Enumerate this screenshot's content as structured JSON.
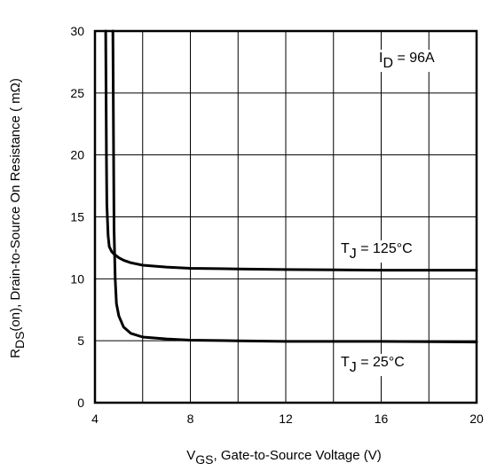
{
  "chart_data": {
    "type": "line",
    "title": "",
    "xlabel": {
      "main": "V",
      "sub": "GS",
      "rest": ", Gate-to-Source Voltage (V)"
    },
    "ylabel": {
      "main": "R",
      "sub": "DS",
      "rest": "(on),  Drain-to-Source On Resistance ( mΩ)"
    },
    "xlim": [
      4,
      20
    ],
    "ylim": [
      0,
      30
    ],
    "xticks": [
      4,
      8,
      12,
      16,
      20
    ],
    "yticks": [
      0,
      5,
      10,
      15,
      20,
      25,
      30
    ],
    "grid": true,
    "legend": "none",
    "colors": {
      "line": "#000000",
      "grid": "#000000",
      "background": "#ffffff"
    },
    "series": [
      {
        "label": {
          "main": "T",
          "sub": "J",
          "rest": " = 125°C"
        },
        "x": [
          4.45,
          4.48,
          4.5,
          4.55,
          4.6,
          4.7,
          4.8,
          5.0,
          5.2,
          5.5,
          6,
          7,
          8,
          10,
          12,
          16,
          20
        ],
        "y": [
          30,
          20,
          16,
          13.5,
          12.6,
          12.2,
          12.0,
          11.7,
          11.5,
          11.3,
          11.1,
          10.95,
          10.85,
          10.8,
          10.75,
          10.7,
          10.7
        ]
      },
      {
        "label": {
          "main": "T",
          "sub": "J",
          "rest": " = 25°C"
        },
        "x": [
          4.75,
          4.78,
          4.8,
          4.85,
          4.9,
          5.0,
          5.2,
          5.5,
          6,
          7,
          8,
          10,
          12,
          16,
          20
        ],
        "y": [
          30,
          20,
          14,
          10,
          8,
          7,
          6.1,
          5.6,
          5.3,
          5.15,
          5.05,
          5.0,
          4.95,
          4.95,
          4.9
        ]
      }
    ],
    "annotations": [
      {
        "main": "I",
        "sub": "D",
        "rest": " = 96A"
      }
    ]
  }
}
